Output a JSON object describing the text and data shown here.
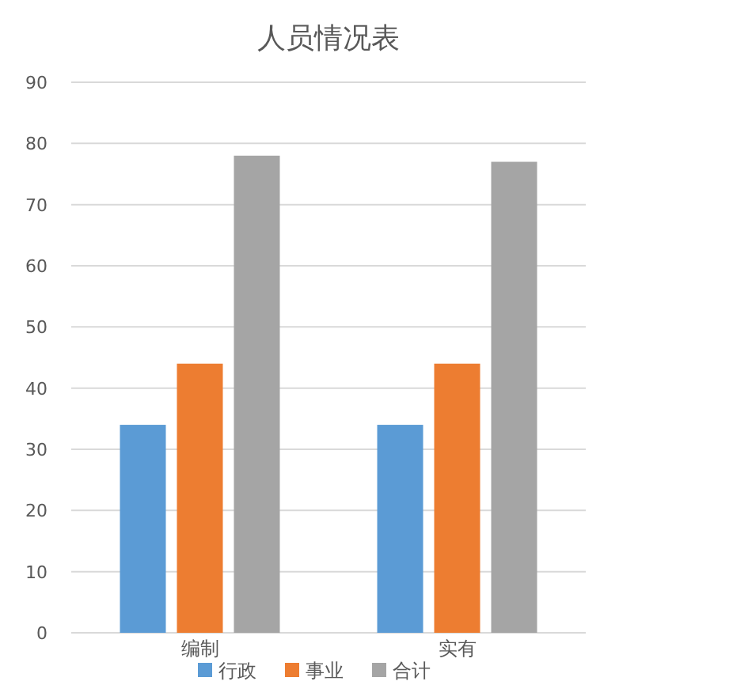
{
  "chart_data": {
    "type": "bar",
    "title": "人员情况表",
    "categories": [
      "编制",
      "实有"
    ],
    "series": [
      {
        "name": "行政",
        "color": "#5b9bd5",
        "values": [
          34,
          34
        ]
      },
      {
        "name": "事业",
        "color": "#ed7d31",
        "values": [
          44,
          44
        ]
      },
      {
        "name": "合计",
        "color": "#a5a5a5",
        "values": [
          78,
          77
        ]
      }
    ],
    "ylim": [
      0,
      90
    ],
    "yticks": [
      0,
      10,
      20,
      30,
      40,
      50,
      60,
      70,
      80,
      90
    ],
    "grid": "y",
    "legend": "bottom"
  }
}
